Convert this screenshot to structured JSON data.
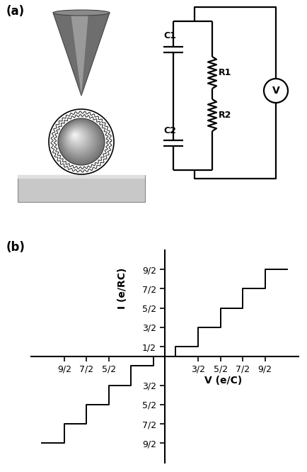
{
  "panel_a": {
    "label": "(a)",
    "circuit": {
      "capacitors": [
        "C1",
        "C2"
      ],
      "resistors": [
        "R1",
        "R2"
      ],
      "meter": "V"
    }
  },
  "chart_data": {
    "type": "step",
    "panel_label": "(b)",
    "x_label": "V (e/C)",
    "y_label": "I (e/RC)",
    "x": [
      -5.5,
      -4.5,
      -3.5,
      -2.5,
      -1.5,
      -0.5,
      0.5,
      1.5,
      2.5,
      3.5,
      4.5,
      5.5
    ],
    "values": [
      -4.5,
      -3.5,
      -2.5,
      -1.5,
      -0.5,
      0,
      0.5,
      1.5,
      2.5,
      3.5,
      4.5,
      4.5
    ],
    "color": "#000000",
    "xlim": [
      -6,
      6
    ],
    "ylim": [
      -5.5,
      5.5
    ],
    "xticks": [
      {
        "value": -4.5,
        "label": "9/2"
      },
      {
        "value": -3.5,
        "label": "7/2"
      },
      {
        "value": -2.5,
        "label": "5/2"
      },
      {
        "value": 1.5,
        "label": "3/2"
      },
      {
        "value": 2.5,
        "label": "5/2"
      },
      {
        "value": 3.5,
        "label": "7/2"
      },
      {
        "value": 4.5,
        "label": "9/2"
      }
    ],
    "yticks": [
      {
        "value": -4.5,
        "label": "9/2"
      },
      {
        "value": -3.5,
        "label": "7/2"
      },
      {
        "value": -2.5,
        "label": "5/2"
      },
      {
        "value": -1.5,
        "label": "3/2"
      },
      {
        "value": 0.5,
        "label": "1/2"
      },
      {
        "value": 1.5,
        "label": "3/2"
      },
      {
        "value": 2.5,
        "label": "5/2"
      },
      {
        "value": 3.5,
        "label": "7/2"
      },
      {
        "value": 4.5,
        "label": "9/2"
      }
    ],
    "grid": false
  }
}
